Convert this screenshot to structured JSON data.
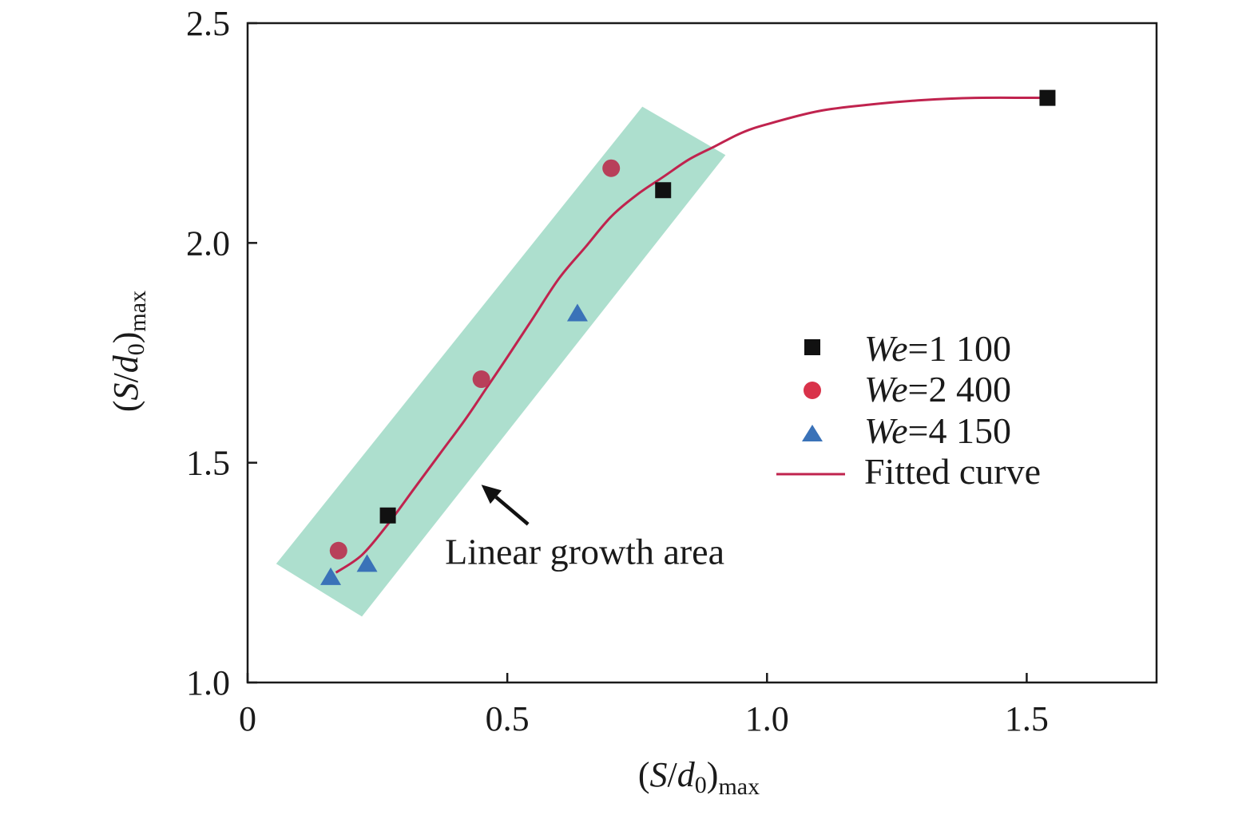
{
  "chart_data": {
    "type": "scatter",
    "xlabel": {
      "open": "(",
      "var": "S",
      "slash": "/",
      "var2": "d",
      "sub2": "0",
      "close": ")",
      "sub": "max"
    },
    "ylabel": {
      "open": "(",
      "var": "S",
      "slash": "/",
      "var2": "d",
      "sub2": "0",
      "close": ")",
      "sub": "max"
    },
    "xlim": [
      0,
      1.75
    ],
    "ylim": [
      1.0,
      2.5
    ],
    "x_ticks": [
      {
        "value": 0,
        "label": "0"
      },
      {
        "value": 0.5,
        "label": "0.5"
      },
      {
        "value": 1.0,
        "label": "1.0"
      },
      {
        "value": 1.5,
        "label": "1.5"
      }
    ],
    "y_ticks": [
      {
        "value": 1.0,
        "label": "1.0"
      },
      {
        "value": 1.5,
        "label": "1.5"
      },
      {
        "value": 2.0,
        "label": "2.0"
      },
      {
        "value": 2.5,
        "label": "2.5"
      }
    ],
    "grid": false,
    "legend_position": "right",
    "series": [
      {
        "name": {
          "var": "We",
          "eq": "=1 100"
        },
        "marker": "square",
        "color": "#111111",
        "points": [
          [
            0.27,
            1.38
          ],
          [
            0.8,
            2.12
          ],
          [
            1.54,
            2.33
          ]
        ]
      },
      {
        "name": {
          "var": "We",
          "eq": "=2 400"
        },
        "marker": "circle",
        "color": "#b8405a",
        "points": [
          [
            0.175,
            1.3
          ],
          [
            0.45,
            1.69
          ],
          [
            0.7,
            2.17
          ]
        ]
      },
      {
        "name": {
          "var": "We",
          "eq": "=4 150"
        },
        "marker": "triangle",
        "color": "#3a72b8",
        "points": [
          [
            0.16,
            1.24
          ],
          [
            0.23,
            1.27
          ],
          [
            0.635,
            1.84
          ]
        ]
      }
    ],
    "fitted_curve": {
      "name": "Fitted curve",
      "color": "#c0234e",
      "points": [
        [
          0.17,
          1.25
        ],
        [
          0.22,
          1.29
        ],
        [
          0.27,
          1.36
        ],
        [
          0.32,
          1.44
        ],
        [
          0.37,
          1.52
        ],
        [
          0.42,
          1.6
        ],
        [
          0.46,
          1.67
        ],
        [
          0.5,
          1.74
        ],
        [
          0.55,
          1.83
        ],
        [
          0.6,
          1.92
        ],
        [
          0.65,
          1.99
        ],
        [
          0.7,
          2.06
        ],
        [
          0.75,
          2.11
        ],
        [
          0.8,
          2.15
        ],
        [
          0.85,
          2.19
        ],
        [
          0.9,
          2.22
        ],
        [
          0.95,
          2.25
        ],
        [
          1.0,
          2.27
        ],
        [
          1.1,
          2.3
        ],
        [
          1.2,
          2.315
        ],
        [
          1.3,
          2.325
        ],
        [
          1.4,
          2.33
        ],
        [
          1.54,
          2.33
        ]
      ]
    },
    "shaded_region": {
      "label": "Linear growth area",
      "color": "#9fd9c6",
      "corners": [
        [
          0.055,
          1.27
        ],
        [
          0.76,
          2.31
        ],
        [
          0.92,
          2.2
        ],
        [
          0.22,
          1.15
        ]
      ]
    },
    "annotation": {
      "text": "Linear growth area",
      "text_at": [
        0.38,
        1.27
      ],
      "arrow_from": [
        0.54,
        1.36
      ],
      "arrow_to": [
        0.45,
        1.45
      ]
    }
  }
}
